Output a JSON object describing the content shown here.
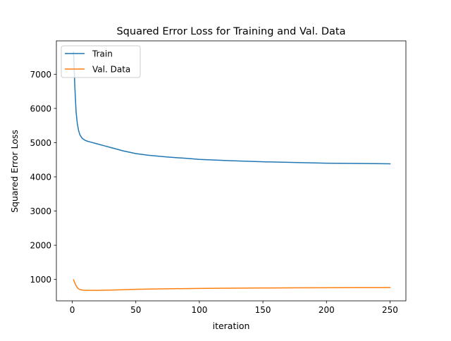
{
  "chart_data": {
    "type": "line",
    "title": "Squared Error Loss for Training and Val. Data",
    "xlabel": "iteration",
    "ylabel": "Squared Error Loss",
    "xlim": [
      -12.5,
      262.5
    ],
    "ylim": [
      375,
      7975
    ],
    "xticks": [
      0,
      50,
      100,
      150,
      200,
      250
    ],
    "yticks": [
      1000,
      2000,
      3000,
      4000,
      5000,
      6000,
      7000
    ],
    "grid": false,
    "legend": "upper-left",
    "series": [
      {
        "name": "Train",
        "color": "#1f77b4",
        "x": [
          1,
          2,
          3,
          4,
          5,
          6,
          7,
          8,
          10,
          12,
          15,
          20,
          25,
          30,
          40,
          50,
          60,
          75,
          90,
          100,
          125,
          150,
          175,
          200,
          225,
          250
        ],
        "y": [
          7650,
          6650,
          5900,
          5550,
          5350,
          5230,
          5170,
          5120,
          5070,
          5040,
          5010,
          4960,
          4910,
          4860,
          4760,
          4680,
          4630,
          4580,
          4540,
          4510,
          4470,
          4440,
          4420,
          4400,
          4390,
          4380
        ]
      },
      {
        "name": "Val. Data",
        "color": "#ff7f0e",
        "x": [
          1,
          2,
          3,
          4,
          5,
          6,
          8,
          10,
          15,
          20,
          30,
          40,
          50,
          75,
          100,
          125,
          150,
          175,
          200,
          225,
          250
        ],
        "y": [
          990,
          900,
          820,
          760,
          725,
          705,
          690,
          685,
          682,
          682,
          688,
          700,
          712,
          728,
          738,
          745,
          750,
          755,
          758,
          760,
          762
        ]
      }
    ]
  }
}
